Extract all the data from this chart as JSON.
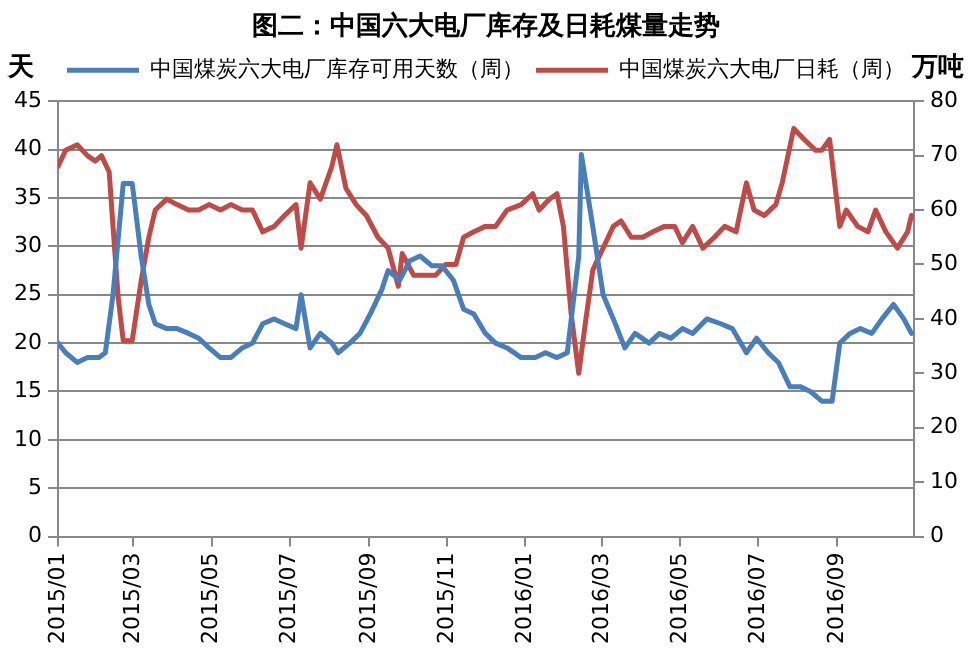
{
  "chart_data": {
    "type": "line",
    "title": "图二：中国六大电厂库存及日耗煤量走势",
    "ylabel": "天",
    "y2label": "万吨",
    "legend": "top",
    "grid": "y",
    "marker": "none",
    "line_style": "solid",
    "xlim": [
      "2015-01-01",
      "2016-10-31"
    ],
    "xticks": [
      {
        "value": "2015-01-01",
        "label": "2015/01"
      },
      {
        "value": "2015-03-01",
        "label": "2015/03"
      },
      {
        "value": "2015-05-01",
        "label": "2015/05"
      },
      {
        "value": "2015-07-01",
        "label": "2015/07"
      },
      {
        "value": "2015-09-01",
        "label": "2015/09"
      },
      {
        "value": "2015-11-01",
        "label": "2015/11"
      },
      {
        "value": "2016-01-01",
        "label": "2016/01"
      },
      {
        "value": "2016-03-01",
        "label": "2016/03"
      },
      {
        "value": "2016-05-01",
        "label": "2016/05"
      },
      {
        "value": "2016-07-01",
        "label": "2016/07"
      },
      {
        "value": "2016-09-01",
        "label": "2016/09"
      }
    ],
    "ylim": [
      0,
      45
    ],
    "yticks": [
      0,
      5,
      10,
      15,
      20,
      25,
      30,
      35,
      40,
      45
    ],
    "y2lim": [
      0,
      80
    ],
    "y2ticks": [
      0,
      10,
      20,
      30,
      40,
      50,
      60,
      70,
      80
    ],
    "series": [
      {
        "name": "中国煤炭六大电厂库存可用天数（周）",
        "color": "#4a7ebb",
        "axis": "y",
        "x": [
          "2015-01-01",
          "2015-01-07",
          "2015-01-16",
          "2015-01-24",
          "2015-02-02",
          "2015-02-07",
          "2015-02-13",
          "2015-02-21",
          "2015-02-28",
          "2015-03-07",
          "2015-03-13",
          "2015-03-18",
          "2015-03-27",
          "2015-04-04",
          "2015-04-13",
          "2015-04-21",
          "2015-04-29",
          "2015-05-08",
          "2015-05-16",
          "2015-05-25",
          "2015-06-02",
          "2015-06-10",
          "2015-06-19",
          "2015-06-27",
          "2015-07-06",
          "2015-07-10",
          "2015-07-17",
          "2015-07-25",
          "2015-08-03",
          "2015-08-08",
          "2015-08-17",
          "2015-08-25",
          "2015-09-02",
          "2015-09-11",
          "2015-09-16",
          "2015-09-25",
          "2015-10-03",
          "2015-10-11",
          "2015-10-20",
          "2015-10-28",
          "2015-11-06",
          "2015-11-14",
          "2015-11-22",
          "2015-12-01",
          "2015-12-09",
          "2015-12-18",
          "2015-12-29",
          "2016-01-09",
          "2016-01-17",
          "2016-01-26",
          "2016-02-03",
          "2016-02-12",
          "2016-02-14",
          "2016-02-23",
          "2016-03-02",
          "2016-03-10",
          "2016-03-19",
          "2016-03-27",
          "2016-04-07",
          "2016-04-15",
          "2016-04-24",
          "2016-05-03",
          "2016-05-11",
          "2016-05-22",
          "2016-06-02",
          "2016-06-11",
          "2016-06-22",
          "2016-06-30",
          "2016-07-09",
          "2016-07-17",
          "2016-07-26",
          "2016-08-03",
          "2016-08-11",
          "2016-08-20",
          "2016-08-28",
          "2016-09-03",
          "2016-09-11",
          "2016-09-19",
          "2016-09-28",
          "2016-10-06",
          "2016-10-15",
          "2016-10-23",
          "2016-10-29"
        ],
        "values": [
          20,
          19,
          18,
          18.5,
          18.5,
          19,
          25,
          36.5,
          36.5,
          29,
          24,
          22,
          21.5,
          21.5,
          21,
          20.5,
          19.5,
          18.5,
          18.5,
          19.5,
          20,
          22,
          22.5,
          22,
          21.5,
          25,
          19.5,
          21,
          20,
          19,
          20,
          21,
          23,
          25.5,
          27.5,
          26.5,
          28.5,
          29,
          28,
          28,
          26.5,
          23.5,
          23,
          21,
          20,
          19.5,
          18.5,
          18.5,
          19,
          18.5,
          19,
          29,
          39.5,
          32,
          25,
          22.5,
          19.5,
          21,
          20,
          21,
          20.5,
          21.5,
          21,
          22.5,
          22,
          21.5,
          19,
          20.5,
          19,
          18,
          15.5,
          15.5,
          15,
          14,
          14,
          20,
          21,
          21.5,
          21,
          22.5,
          24,
          22.5,
          21
        ]
      },
      {
        "name": "中国煤炭六大电厂日耗（周）",
        "color": "#be4b48",
        "axis": "y2",
        "x": [
          "2015-01-01",
          "2015-01-07",
          "2015-01-16",
          "2015-01-24",
          "2015-01-30",
          "2015-02-04",
          "2015-02-10",
          "2015-02-13",
          "2015-02-17",
          "2015-02-21",
          "2015-02-28",
          "2015-03-07",
          "2015-03-13",
          "2015-03-18",
          "2015-03-27",
          "2015-04-04",
          "2015-04-13",
          "2015-04-21",
          "2015-04-29",
          "2015-05-08",
          "2015-05-16",
          "2015-05-25",
          "2015-06-02",
          "2015-06-10",
          "2015-06-19",
          "2015-06-27",
          "2015-07-06",
          "2015-07-10",
          "2015-07-17",
          "2015-07-25",
          "2015-08-03",
          "2015-08-07",
          "2015-08-14",
          "2015-08-22",
          "2015-08-30",
          "2015-09-08",
          "2015-09-16",
          "2015-09-24",
          "2015-09-27",
          "2015-10-06",
          "2015-10-14",
          "2015-10-23",
          "2015-10-31",
          "2015-11-08",
          "2015-11-14",
          "2015-11-22",
          "2015-12-01",
          "2015-12-09",
          "2015-12-18",
          "2015-12-29",
          "2016-01-07",
          "2016-01-12",
          "2016-01-20",
          "2016-01-26",
          "2016-01-31",
          "2016-02-06",
          "2016-02-12",
          "2016-02-17",
          "2016-02-23",
          "2016-03-02",
          "2016-03-10",
          "2016-03-16",
          "2016-03-24",
          "2016-04-02",
          "2016-04-10",
          "2016-04-19",
          "2016-04-27",
          "2016-05-03",
          "2016-05-11",
          "2016-05-19",
          "2016-05-28",
          "2016-06-05",
          "2016-06-14",
          "2016-06-22",
          "2016-06-28",
          "2016-07-06",
          "2016-07-15",
          "2016-07-20",
          "2016-07-29",
          "2016-08-06",
          "2016-08-15",
          "2016-08-20",
          "2016-08-26",
          "2016-09-03",
          "2016-09-08",
          "2016-09-17",
          "2016-09-25",
          "2016-10-01",
          "2016-10-09",
          "2016-10-18",
          "2016-10-26",
          "2016-10-29"
        ],
        "values": [
          68,
          71,
          72,
          70,
          69,
          70,
          67,
          57,
          44,
          36,
          36,
          47,
          55,
          60,
          62,
          61,
          60,
          60,
          61,
          60,
          61,
          60,
          60,
          56,
          57,
          59,
          61,
          53,
          65,
          62,
          68,
          72,
          64,
          61,
          59,
          55,
          53,
          46,
          52,
          48,
          48,
          48,
          50,
          50,
          55,
          56,
          57,
          57,
          60,
          61,
          63,
          60,
          62,
          63,
          57,
          41,
          30,
          39,
          49,
          53,
          57,
          58,
          55,
          55,
          56,
          57,
          57,
          54,
          57,
          53,
          55,
          57,
          56,
          65,
          60,
          59,
          61,
          65,
          75,
          73,
          71,
          71,
          73,
          57,
          60,
          57,
          56,
          60,
          56,
          53,
          56,
          59
        ]
      }
    ]
  }
}
